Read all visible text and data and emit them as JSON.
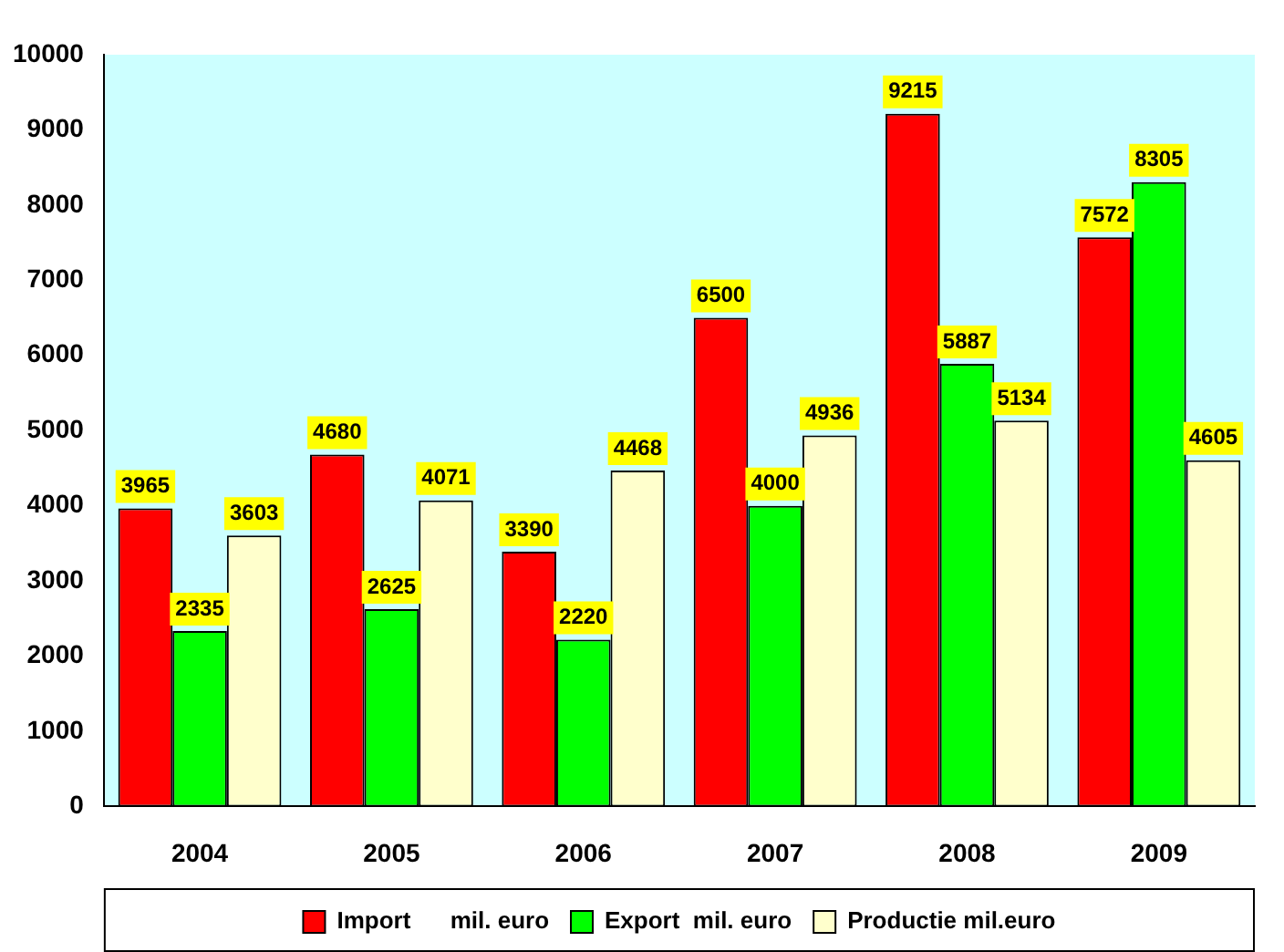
{
  "chart_data": {
    "type": "bar",
    "categories": [
      "2004",
      "2005",
      "2006",
      "2007",
      "2008",
      "2009"
    ],
    "series": [
      {
        "name": "Import      mil. euro",
        "color": "#ff0000",
        "values": [
          3965,
          4680,
          3390,
          6500,
          9215,
          7572
        ]
      },
      {
        "name": "Export  mil. euro",
        "color": "#00ff00",
        "values": [
          2335,
          2625,
          2220,
          4000,
          5887,
          8305
        ]
      },
      {
        "name": "Productie mil.euro",
        "color": "#ffffcc",
        "values": [
          3603,
          4071,
          4468,
          4936,
          5134,
          4605
        ]
      }
    ],
    "ylim": [
      0,
      10000
    ],
    "yticks": [
      0,
      1000,
      2000,
      3000,
      4000,
      5000,
      6000,
      7000,
      8000,
      9000,
      10000
    ],
    "grid": false,
    "legend": "bottom",
    "data_labels": true
  }
}
